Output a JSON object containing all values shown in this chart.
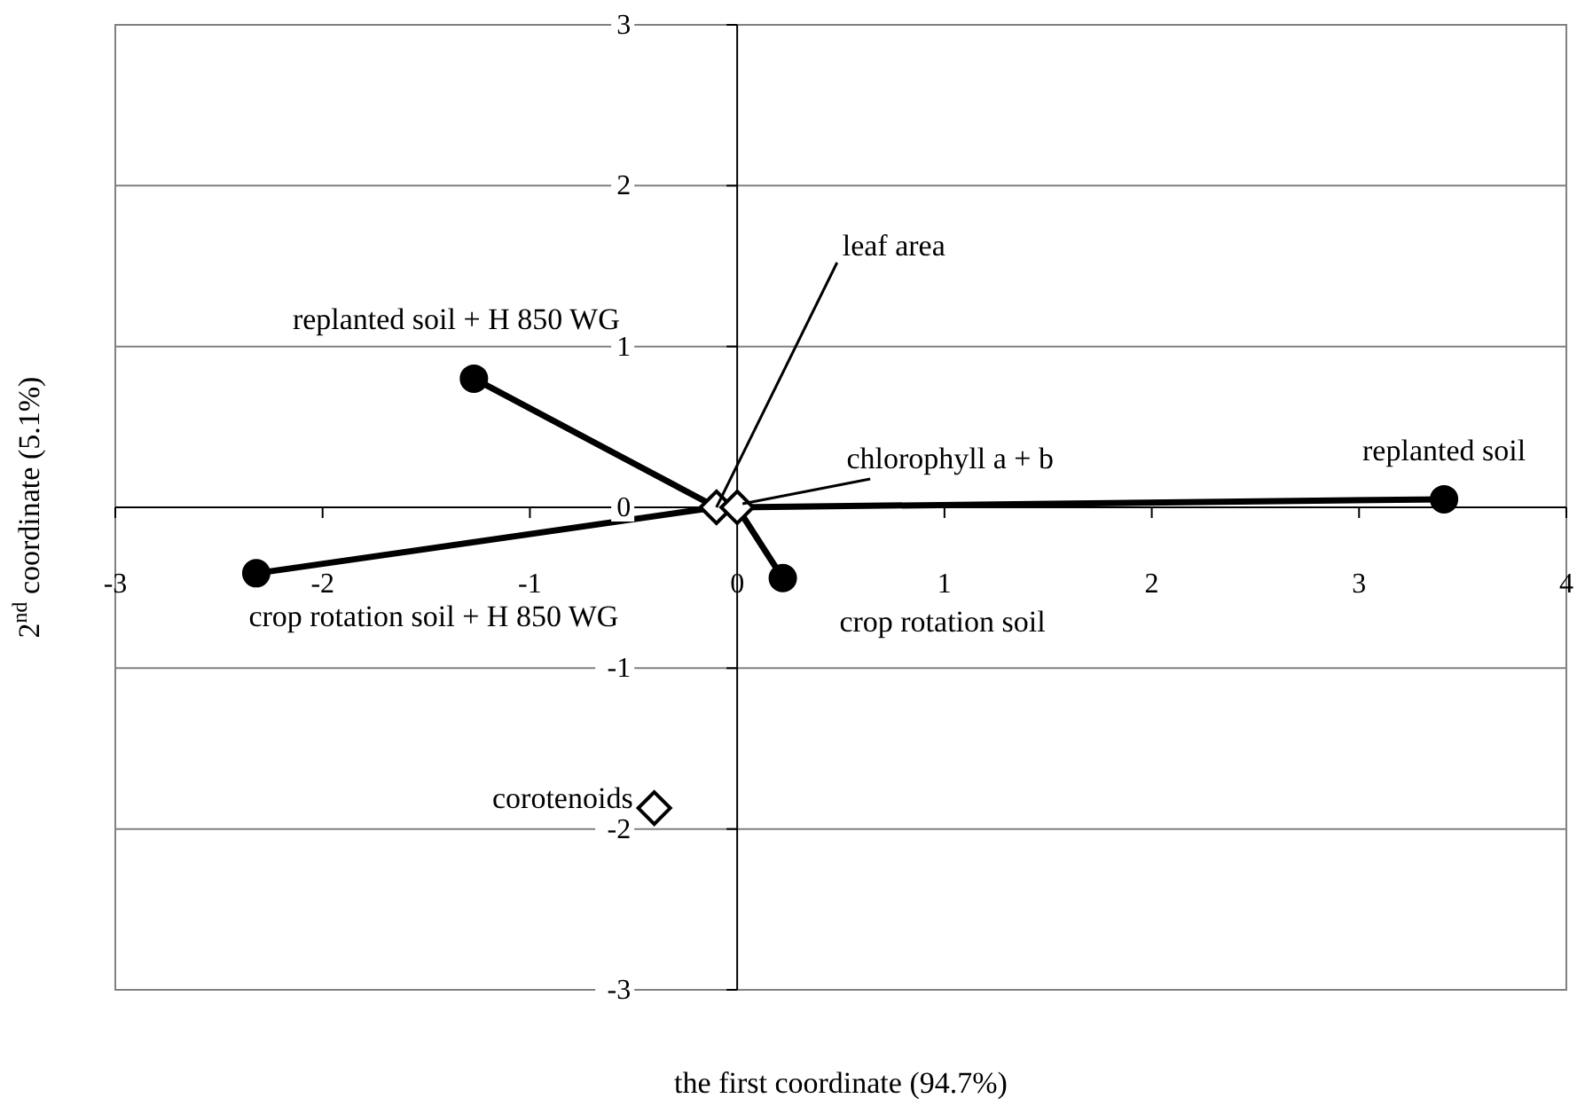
{
  "chart_data": {
    "type": "scatter",
    "xlabel": "the first coordinate (94.7%)",
    "ylabel": "2$^{nd}$ coordinate (5.1%)",
    "xlim": [
      -3,
      4
    ],
    "ylim": [
      -3,
      3
    ],
    "xticks": [
      -3,
      -2,
      -1,
      0,
      1,
      2,
      3,
      4
    ],
    "yticks": [
      -3,
      -2,
      -1,
      0,
      1,
      2,
      3
    ],
    "grid": "y",
    "series": [
      {
        "type": "line",
        "color": "#000000",
        "x": [
          -1.27,
          -0.1
        ],
        "values": [
          0.8,
          0
        ],
        "line_style": "solid"
      },
      {
        "type": "line",
        "color": "#000000",
        "x": [
          -2.32,
          -0.1
        ],
        "values": [
          -0.41,
          0
        ],
        "line_style": "solid"
      },
      {
        "type": "line",
        "color": "#000000",
        "x": [
          0.22,
          0
        ],
        "values": [
          -0.44,
          0
        ],
        "line_style": "solid"
      },
      {
        "type": "line",
        "color": "#000000",
        "x": [
          3.41,
          0
        ],
        "values": [
          0.05,
          0
        ],
        "line_style": "solid"
      },
      {
        "color": "#000000",
        "x": [
          -1.27,
          -2.32,
          0.22,
          3.41
        ],
        "values": [
          0.8,
          -0.41,
          -0.44,
          0.05
        ],
        "marker": "circle"
      },
      {
        "color": "#ffffff",
        "x": [
          -0.1,
          0,
          -0.4
        ],
        "values": [
          0,
          0,
          -1.87
        ],
        "marker": "diamond"
      }
    ],
    "annotations": [
      {
        "text": "replanted soil + H 850 WG",
        "x": -1.27,
        "y": 0.8
      },
      {
        "text": "crop rotation soil + H 850 WG",
        "x": -2.32,
        "y": -0.41
      },
      {
        "text": "crop rotation soil",
        "x": 0.22,
        "y": -0.44
      },
      {
        "text": "replanted soil",
        "x": 3.41,
        "y": 0.05
      },
      {
        "text": "leaf area",
        "x": -0.1,
        "y": 0
      },
      {
        "text": "chlorophyll a + b",
        "x": 0,
        "y": 0
      },
      {
        "text": "corotenoids",
        "x": -0.4,
        "y": -1.87
      }
    ]
  }
}
